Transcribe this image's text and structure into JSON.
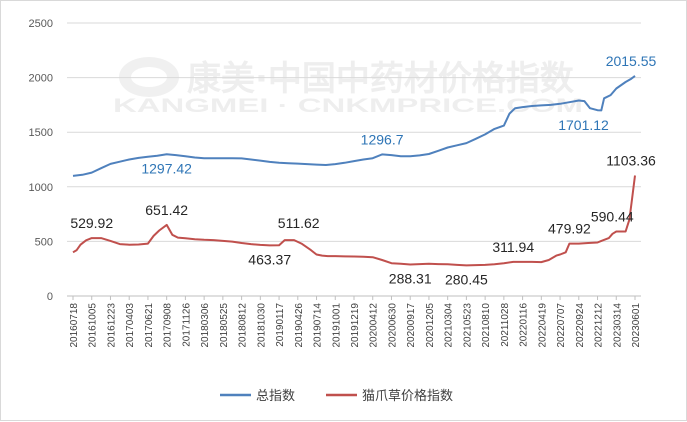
{
  "chart_data": {
    "type": "line",
    "title": "",
    "xlabel": "",
    "ylabel": "",
    "ylim": [
      0,
      2500
    ],
    "yticks": [
      0,
      500,
      1000,
      1500,
      2000,
      2500
    ],
    "grid": true,
    "legend_position": "bottom",
    "watermark": {
      "cn": "康美·中国中药材价格指数",
      "en": "KANGMEI · CNKMPRICE.COM"
    },
    "x_tick_labels": [
      "20160718",
      "20161005",
      "20161223",
      "20170403",
      "20170621",
      "20170908",
      "20171126",
      "20180306",
      "20180525",
      "20180812",
      "20181030",
      "20190117",
      "20190426",
      "20190714",
      "20191001",
      "20191219",
      "20200412",
      "20200630",
      "20200917",
      "20201205",
      "20210304",
      "20210523",
      "20210810",
      "20211028",
      "20220116",
      "20220419",
      "20220707",
      "20220924",
      "20221212",
      "20230314",
      "20230601"
    ],
    "series": [
      {
        "name": "总指数",
        "color": "#4f81bd",
        "points": [
          [
            0,
            1100
          ],
          [
            0.5,
            1110
          ],
          [
            1,
            1130
          ],
          [
            1.5,
            1170
          ],
          [
            2,
            1210
          ],
          [
            2.5,
            1230
          ],
          [
            3,
            1250
          ],
          [
            3.5,
            1265
          ],
          [
            4,
            1275
          ],
          [
            4.5,
            1285
          ],
          [
            5,
            1297.42
          ],
          [
            5.5,
            1290
          ],
          [
            6,
            1280
          ],
          [
            6.5,
            1268
          ],
          [
            7,
            1262
          ],
          [
            7.5,
            1262
          ],
          [
            8,
            1262
          ],
          [
            8.5,
            1262
          ],
          [
            9,
            1260
          ],
          [
            9.5,
            1250
          ],
          [
            10,
            1240
          ],
          [
            10.5,
            1228
          ],
          [
            11,
            1220
          ],
          [
            11.5,
            1215
          ],
          [
            12,
            1212
          ],
          [
            12.5,
            1208
          ],
          [
            13,
            1203
          ],
          [
            13.5,
            1200
          ],
          [
            14,
            1208
          ],
          [
            14.5,
            1220
          ],
          [
            15,
            1235
          ],
          [
            15.5,
            1250
          ],
          [
            16,
            1262
          ],
          [
            16.5,
            1296.7
          ],
          [
            17,
            1290
          ],
          [
            17.5,
            1280
          ],
          [
            18,
            1280
          ],
          [
            18.5,
            1288
          ],
          [
            19,
            1300
          ],
          [
            19.5,
            1330
          ],
          [
            20,
            1360
          ],
          [
            20.5,
            1380
          ],
          [
            21,
            1400
          ],
          [
            21.5,
            1440
          ],
          [
            22,
            1480
          ],
          [
            22.5,
            1530
          ],
          [
            23,
            1560
          ],
          [
            23.3,
            1670
          ],
          [
            23.6,
            1720
          ],
          [
            24,
            1730
          ],
          [
            24.5,
            1740
          ],
          [
            25,
            1745
          ],
          [
            25.5,
            1750
          ],
          [
            26,
            1760
          ],
          [
            26.5,
            1775
          ],
          [
            27,
            1790
          ],
          [
            27.3,
            1785
          ],
          [
            27.6,
            1720
          ],
          [
            28,
            1701.12
          ],
          [
            28.2,
            1700
          ],
          [
            28.35,
            1810
          ],
          [
            28.7,
            1840
          ],
          [
            29,
            1900
          ],
          [
            29.5,
            1960
          ],
          [
            29.8,
            1990
          ],
          [
            30,
            2015.55
          ]
        ]
      },
      {
        "name": "猫爪草价格指数",
        "color": "#c0504d",
        "points": [
          [
            0,
            400
          ],
          [
            0.2,
            420
          ],
          [
            0.4,
            470
          ],
          [
            0.7,
            510
          ],
          [
            1,
            529.92
          ],
          [
            1.5,
            529.92
          ],
          [
            2,
            505
          ],
          [
            2.5,
            475
          ],
          [
            3,
            470
          ],
          [
            3.5,
            472
          ],
          [
            4,
            480
          ],
          [
            4.3,
            550
          ],
          [
            4.6,
            600
          ],
          [
            5,
            651.42
          ],
          [
            5.3,
            560
          ],
          [
            5.6,
            535
          ],
          [
            6,
            528
          ],
          [
            6.5,
            520
          ],
          [
            7,
            515
          ],
          [
            7.5,
            512
          ],
          [
            8,
            505
          ],
          [
            8.5,
            498
          ],
          [
            9,
            485
          ],
          [
            9.5,
            475
          ],
          [
            10,
            468
          ],
          [
            10.5,
            463.37
          ],
          [
            11,
            465
          ],
          [
            11.3,
            511.62
          ],
          [
            11.8,
            511.62
          ],
          [
            12.2,
            480
          ],
          [
            12.7,
            420
          ],
          [
            13,
            380
          ],
          [
            13.3,
            370
          ],
          [
            13.6,
            365
          ],
          [
            14,
            365
          ],
          [
            14.5,
            363
          ],
          [
            15,
            362
          ],
          [
            15.5,
            360
          ],
          [
            16,
            355
          ],
          [
            16.5,
            330
          ],
          [
            17,
            300
          ],
          [
            17.5,
            295
          ],
          [
            18,
            288.31
          ],
          [
            18.5,
            292
          ],
          [
            19,
            295
          ],
          [
            19.5,
            292
          ],
          [
            20,
            290
          ],
          [
            20.5,
            285
          ],
          [
            21,
            280.45
          ],
          [
            21.5,
            283
          ],
          [
            22,
            285
          ],
          [
            22.5,
            290
          ],
          [
            23,
            300
          ],
          [
            23.5,
            311.94
          ],
          [
            24,
            311.94
          ],
          [
            24.5,
            311.94
          ],
          [
            25,
            310
          ],
          [
            25.4,
            330
          ],
          [
            25.8,
            370
          ],
          [
            26,
            380
          ],
          [
            26.3,
            400
          ],
          [
            26.5,
            479.92
          ],
          [
            27,
            479.92
          ],
          [
            27.5,
            485
          ],
          [
            28,
            490
          ],
          [
            28.2,
            505
          ],
          [
            28.6,
            530
          ],
          [
            28.8,
            570
          ],
          [
            29,
            590.44
          ],
          [
            29.5,
            590.44
          ],
          [
            29.7,
            700
          ],
          [
            29.85,
            900
          ],
          [
            30,
            1103.36
          ]
        ]
      }
    ],
    "data_labels": [
      {
        "series": 0,
        "text": "1297.42",
        "x": 5,
        "y": 1297.42,
        "pos": "below"
      },
      {
        "series": 0,
        "text": "1296.7",
        "x": 16.5,
        "y": 1296.7,
        "pos": "above"
      },
      {
        "series": 0,
        "text": "1701.12",
        "x": 28,
        "y": 1701.12,
        "pos": "below-left"
      },
      {
        "series": 0,
        "text": "2015.55",
        "x": 30,
        "y": 2015.55,
        "pos": "above-left"
      },
      {
        "series": 1,
        "text": "529.92",
        "x": 1,
        "y": 529.92,
        "pos": "above"
      },
      {
        "series": 1,
        "text": "651.42",
        "x": 5,
        "y": 651.42,
        "pos": "above"
      },
      {
        "series": 1,
        "text": "463.37",
        "x": 10.5,
        "y": 463.37,
        "pos": "below"
      },
      {
        "series": 1,
        "text": "511.62",
        "x": 11.3,
        "y": 511.62,
        "pos": "above-right"
      },
      {
        "series": 1,
        "text": "288.31",
        "x": 18,
        "y": 288.31,
        "pos": "below"
      },
      {
        "series": 1,
        "text": "280.45",
        "x": 21,
        "y": 280.45,
        "pos": "below"
      },
      {
        "series": 1,
        "text": "311.94",
        "x": 23.5,
        "y": 311.94,
        "pos": "above"
      },
      {
        "series": 1,
        "text": "479.92",
        "x": 26.5,
        "y": 479.92,
        "pos": "above"
      },
      {
        "series": 1,
        "text": "590.44",
        "x": 29,
        "y": 590.44,
        "pos": "above-left"
      },
      {
        "series": 1,
        "text": "1103.36",
        "x": 30,
        "y": 1103.36,
        "pos": "above-left"
      }
    ]
  }
}
